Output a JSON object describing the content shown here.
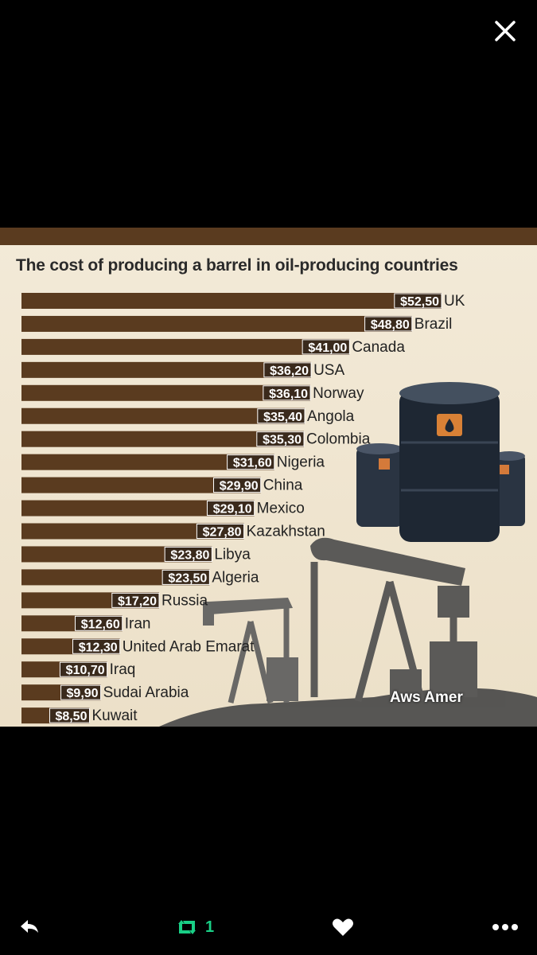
{
  "viewer": {
    "close_icon": "close-icon"
  },
  "chart_data": {
    "type": "bar",
    "orientation": "horizontal",
    "title": "The cost of producing a barrel in oil-producing countries",
    "categories": [
      "UK",
      "Brazil",
      "Canada",
      "USA",
      "Norway",
      "Angola",
      "Colombia",
      "Nigeria",
      "China",
      "Mexico",
      "Kazakhstan",
      "Libya",
      "Algeria",
      "Russia",
      "Iran",
      "United Arab Emarat",
      "Iraq",
      "Sudai Arabia",
      "Kuwait"
    ],
    "values": [
      52.5,
      48.8,
      41.0,
      36.2,
      36.1,
      35.4,
      35.3,
      31.6,
      29.9,
      29.1,
      27.8,
      23.8,
      23.5,
      17.2,
      12.6,
      12.3,
      10.7,
      9.9,
      8.5
    ],
    "value_labels": [
      "$52,50",
      "$48,80",
      "$41,00",
      "$36,20",
      "$36,10",
      "$35,40",
      "$35,30",
      "$31,60",
      "$29,90",
      "$29,10",
      "$27,80",
      "$23,80",
      "$23,50",
      "$17,20",
      "$12,60",
      "$12,30",
      "$10,70",
      "$9,90",
      "$8,50"
    ],
    "bar_color": "#5a3b1f",
    "label_box_color": "#3a2a1c",
    "grid": false,
    "legend": "none"
  },
  "watermark": "Aws Amer",
  "actions": {
    "reply_icon": "reply-icon",
    "retweet_icon": "retweet-icon",
    "retweet_count": "1",
    "like_icon": "heart-icon",
    "more_icon": "more-icon",
    "retweet_color": "#19cf86"
  }
}
